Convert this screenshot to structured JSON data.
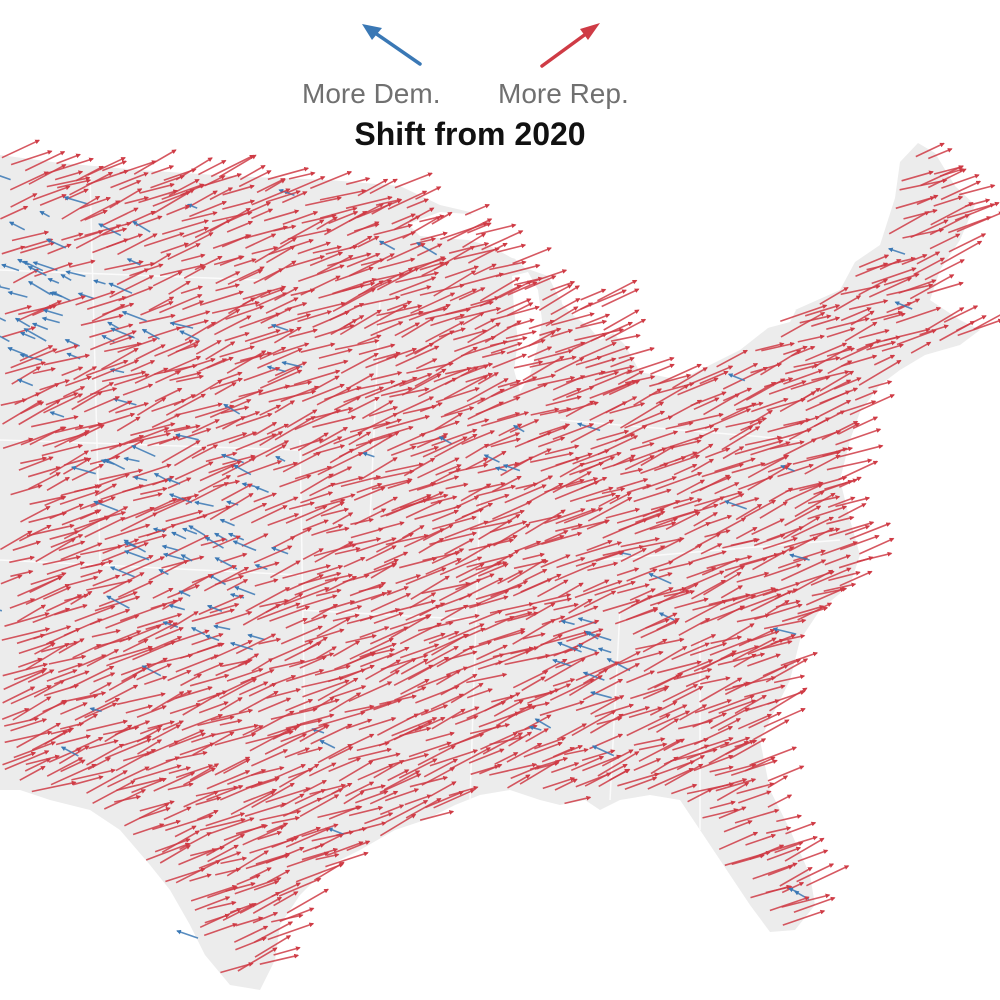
{
  "title": "Shift from 2020",
  "legend": {
    "dem_label": "More Dem.",
    "rep_label": "More Rep."
  },
  "colors": {
    "dem": "#3a78b5",
    "rep": "#cf3b45",
    "land": "#ececec",
    "state_border": "#fbfbfb",
    "background": "#ffffff"
  },
  "icons": {
    "dem_arrow": "arrow-up-left-icon",
    "rep_arrow": "arrow-up-right-icon"
  }
}
